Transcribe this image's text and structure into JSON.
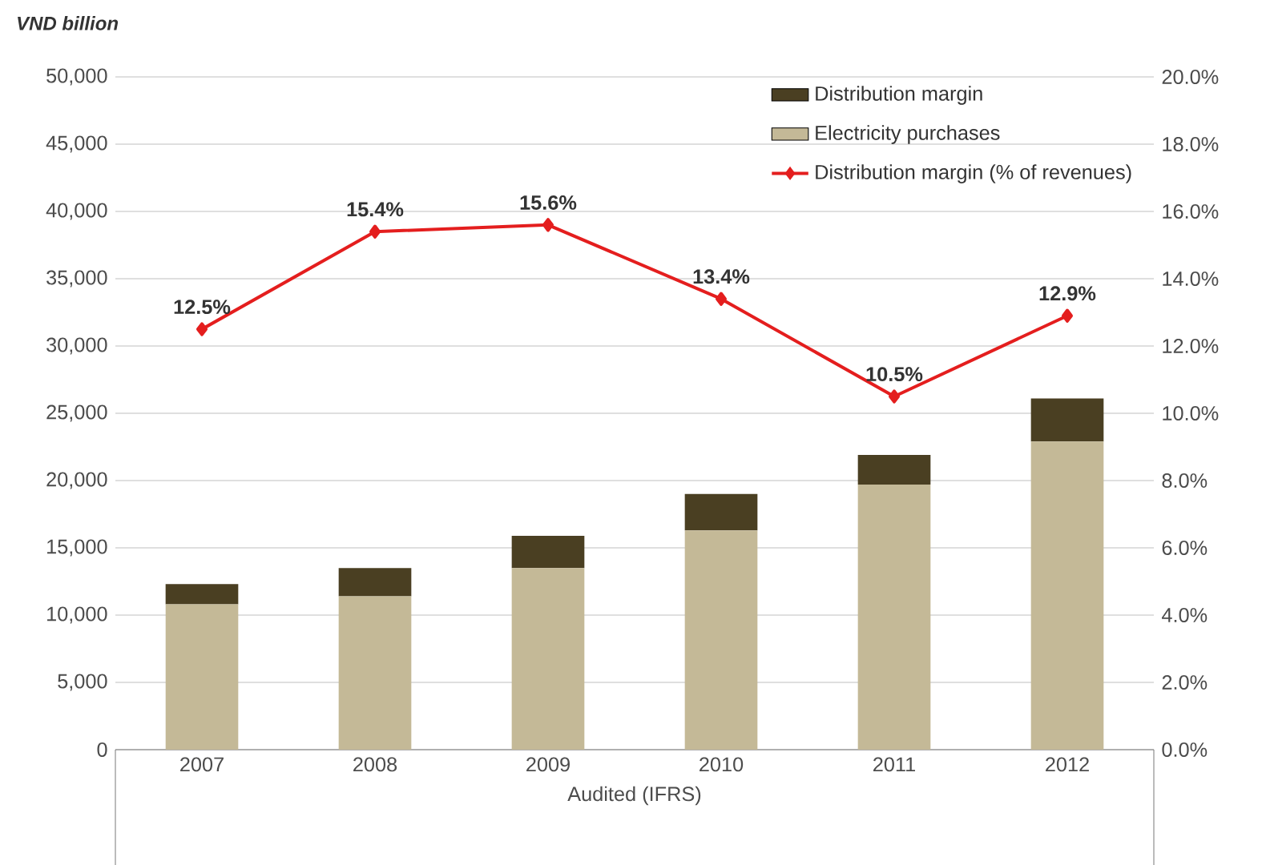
{
  "chart_data": {
    "type": "bar",
    "stacked": true,
    "ylabel": "VND billion",
    "xlabel": "Audited (IFRS)",
    "categories": [
      "2007",
      "2008",
      "2009",
      "2010",
      "2011",
      "2012"
    ],
    "series": [
      {
        "name": "Electricity purchases",
        "color": "#c4b997",
        "values": [
          10800,
          11400,
          13500,
          16300,
          19700,
          22900
        ]
      },
      {
        "name": "Distribution margin",
        "color": "#4a3f22",
        "values": [
          1500,
          2100,
          2400,
          2700,
          2200,
          3200
        ]
      },
      {
        "name": "Distribution margin (% of revenues)",
        "type": "line",
        "axis": "y2",
        "color": "#e41e1e",
        "marker": "diamond",
        "values": [
          12.5,
          15.4,
          15.6,
          13.4,
          10.5,
          12.9
        ],
        "value_labels": [
          "12.5%",
          "15.4%",
          "15.6%",
          "13.4%",
          "10.5%",
          "12.9%"
        ]
      }
    ],
    "ylim": [
      0,
      50000
    ],
    "yticks": [
      0,
      {
        "value": 5000,
        "label": "5,000"
      },
      {
        "value": 10000,
        "label": "10,000"
      },
      {
        "value": 15000,
        "label": "15,000"
      },
      {
        "value": 20000,
        "label": "20,000"
      },
      {
        "value": 25000,
        "label": "25,000"
      },
      {
        "value": 30000,
        "label": "30,000"
      },
      {
        "value": 35000,
        "label": "35,000"
      },
      {
        "value": 40000,
        "label": "40,000"
      },
      {
        "value": 45000,
        "label": "45,000"
      },
      {
        "value": 50000,
        "label": "50,000"
      }
    ],
    "y2lim": [
      0,
      20
    ],
    "y2ticks": [
      {
        "value": 0,
        "label": "0.0%"
      },
      {
        "value": 2,
        "label": "2.0%"
      },
      {
        "value": 4,
        "label": "4.0%"
      },
      {
        "value": 6,
        "label": "6.0%"
      },
      {
        "value": 8,
        "label": "8.0%"
      },
      {
        "value": 10,
        "label": "10.0%"
      },
      {
        "value": 12,
        "label": "12.0%"
      },
      {
        "value": 14,
        "label": "14.0%"
      },
      {
        "value": 16,
        "label": "16.0%"
      },
      {
        "value": 18,
        "label": "18.0%"
      },
      {
        "value": 20,
        "label": "20.0%"
      }
    ],
    "grid": "y",
    "legend": "top right"
  }
}
